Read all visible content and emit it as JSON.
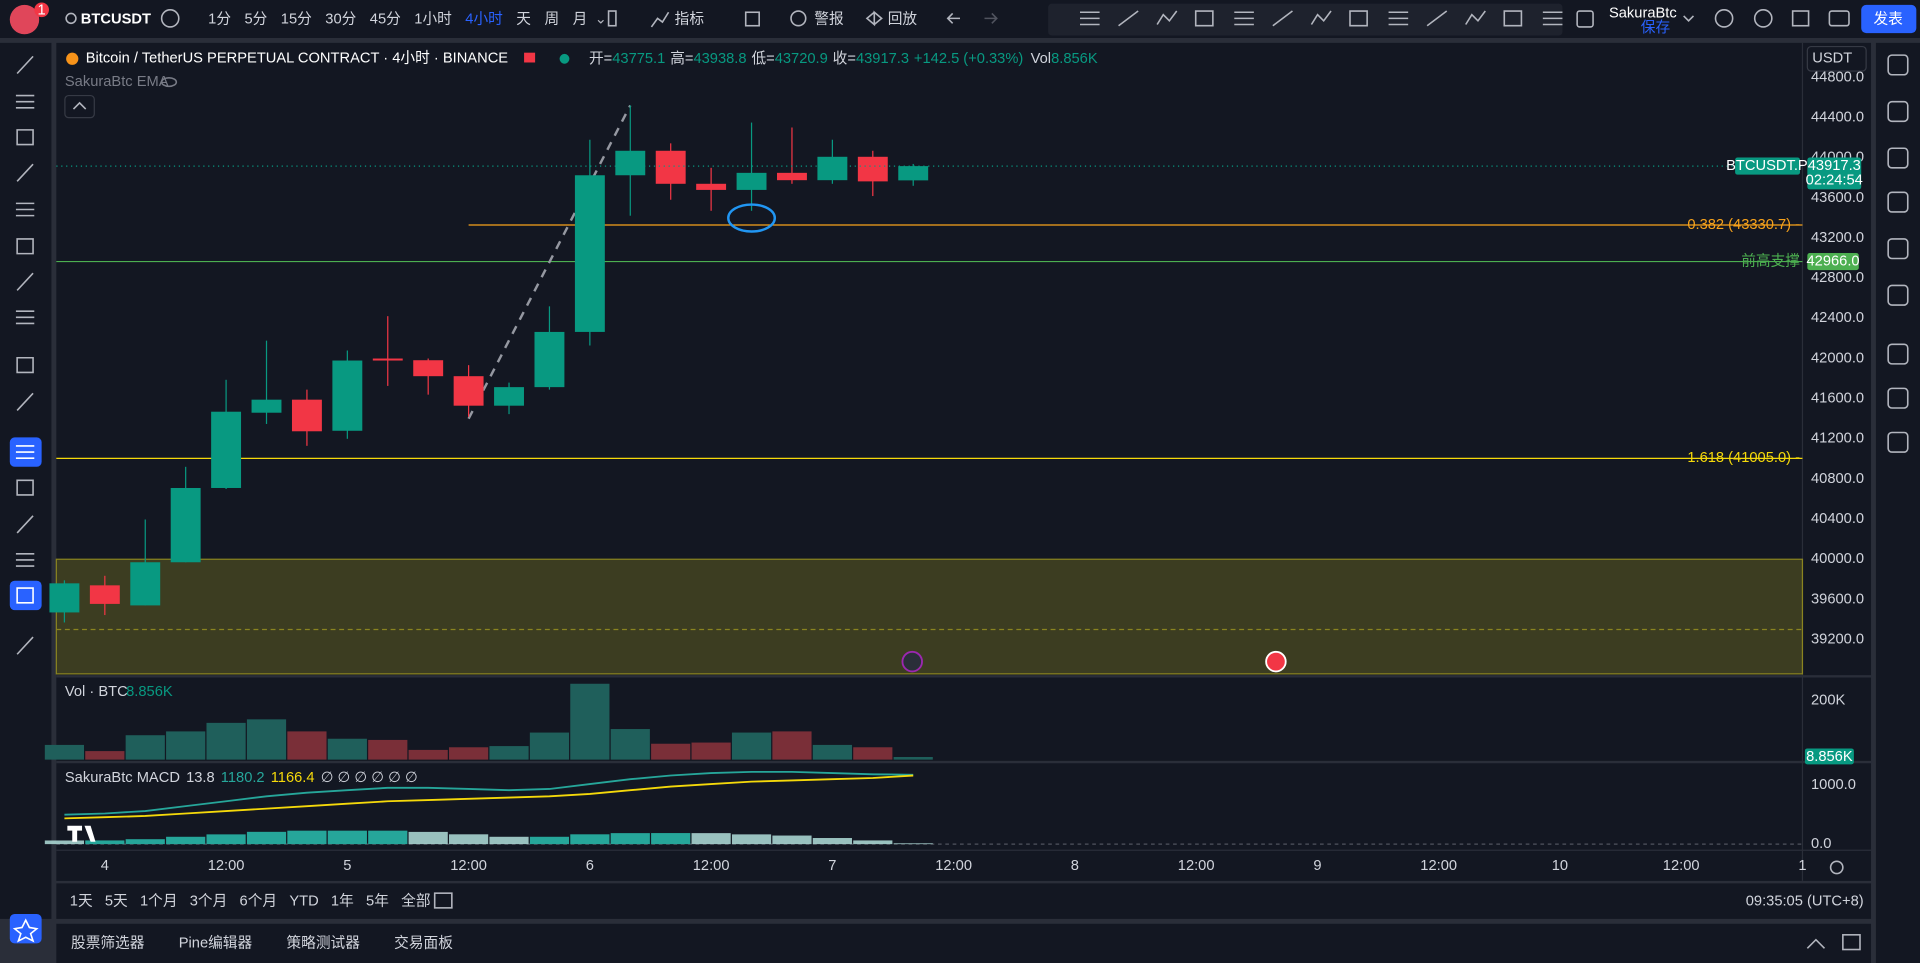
{
  "toolbar": {
    "symbol": "BTCUSDT",
    "notification_count": "1",
    "intervals": [
      "1分",
      "5分",
      "15分",
      "30分",
      "45分",
      "1小时",
      "4小时",
      "天",
      "周",
      "月"
    ],
    "active_interval": 6,
    "indicators": "指标",
    "alert": "警报",
    "replay": "回放",
    "layout_name": "SakuraBtc",
    "save": "保存",
    "publish": "发表"
  },
  "chart_header": {
    "title": "Bitcoin / TetherUS PERPETUAL CONTRACT · 4小时 · BINANCE",
    "legend": [
      {
        "label": "开=",
        "value": "43775.1"
      },
      {
        "label": "高=",
        "value": "43938.8"
      },
      {
        "label": "低=",
        "value": "43720.9"
      },
      {
        "label": "收=",
        "value": "43917.3"
      }
    ],
    "change": "+142.5 (+0.33%)",
    "vol_label": "Vol",
    "vol_value": "8.856K",
    "indicator": "SakuraBtc EMA",
    "currency": "USDT"
  },
  "chart_data": [
    {
      "type": "candlestick",
      "open": [
        39470,
        39740,
        39540,
        39970,
        40710,
        41460,
        41590,
        41280,
        42000,
        41983,
        41824,
        41530,
        41715,
        42265,
        43826,
        44070,
        43741,
        43680,
        43850,
        43777,
        44010,
        43775.1
      ],
      "high": [
        39790,
        39835,
        40396,
        40921,
        41788,
        42178,
        41690,
        42080,
        42422,
        42000,
        41934,
        41760,
        42520,
        44180,
        44522,
        44144,
        43900,
        44351,
        44302,
        44180,
        44070,
        43938.8
      ],
      "low": [
        39370,
        39444,
        39540,
        39970,
        40700,
        41348,
        41130,
        41200,
        41727,
        41640,
        41420,
        41446,
        41690,
        42130,
        43423,
        43582,
        43472,
        43472,
        43741,
        43741,
        43619,
        43720.9
      ],
      "close": [
        39760,
        39555,
        39970,
        40710,
        41470,
        41590,
        41275,
        41980,
        41980,
        41824,
        41530,
        41715,
        42265,
        43826,
        44070,
        43741,
        43680,
        43850,
        43777,
        44010,
        43765,
        43917.3
      ],
      "up_color": "#089981",
      "down_color": "#f23645",
      "xlim": [
        -0.2,
        43
      ],
      "xticks": [
        {
          "value": 1,
          "label": "4"
        },
        {
          "value": 4,
          "label": "12:00"
        },
        {
          "value": 7,
          "label": "5"
        },
        {
          "value": 10,
          "label": "12:00"
        },
        {
          "value": 13,
          "label": "6"
        },
        {
          "value": 16,
          "label": "12:00"
        },
        {
          "value": 19,
          "label": "7"
        },
        {
          "value": 22,
          "label": "12:00"
        },
        {
          "value": 25,
          "label": "8"
        },
        {
          "value": 28,
          "label": "12:00"
        },
        {
          "value": 31,
          "label": "9"
        },
        {
          "value": 34,
          "label": "12:00"
        },
        {
          "value": 37,
          "label": "10"
        },
        {
          "value": 40,
          "label": "12:00"
        },
        {
          "value": 43,
          "label": "1"
        }
      ],
      "ylim": [
        38858,
        45084
      ],
      "yticks": [
        {
          "value": 39200,
          "label": "39200.0"
        },
        {
          "value": 39600,
          "label": "39600.0"
        },
        {
          "value": 40000,
          "label": "40000.0"
        },
        {
          "value": 40400,
          "label": "40400.0"
        },
        {
          "value": 40800,
          "label": "40800.0"
        },
        {
          "value": 41200,
          "label": "41200.0"
        },
        {
          "value": 41600,
          "label": "41600.0"
        },
        {
          "value": 42000,
          "label": "42000.0"
        },
        {
          "value": 42400,
          "label": "42400.0"
        },
        {
          "value": 42800,
          "label": "42800.0"
        },
        {
          "value": 43200,
          "label": "43200.0"
        },
        {
          "value": 43600,
          "label": "43600.0"
        },
        {
          "value": 44000,
          "label": "44000.0"
        },
        {
          "value": 44400,
          "label": "44400.0"
        },
        {
          "value": 44800,
          "label": "44800.0"
        }
      ],
      "grid": false,
      "last_price": {
        "symbol": "BTCUSDT.P",
        "value": 43917.3,
        "countdown": "02:24:54"
      },
      "hlines": [
        {
          "value": 43330.7,
          "label": "0.382 (43330.7) -",
          "color": "#f7a21b",
          "from": 10
        },
        {
          "value": 42966.0,
          "label": "前高支撑",
          "axis_label": "42966.0",
          "color": "#4caf50"
        },
        {
          "value": 41005.0,
          "label": "1.618 (41005.0) -",
          "color": "#f5d90a"
        }
      ],
      "zone": {
        "top": 40000,
        "bottom": 38858,
        "mid": 39300,
        "color": "#8a8420"
      },
      "trendline": {
        "x": [
          10,
          14
        ],
        "y": [
          41400,
          44522
        ]
      },
      "ellipse": {
        "x": 17,
        "y": 43400
      }
    },
    {
      "type": "bar",
      "title": "Vol · BTC",
      "value_label": "8.856K",
      "values": [
        50000,
        29000,
        83000,
        96000,
        125000,
        137000,
        96000,
        71000,
        67000,
        33000,
        42000,
        46000,
        92000,
        258000,
        104000,
        54000,
        58000,
        92000,
        96000,
        50000,
        42000,
        8856
      ],
      "up_color": "#1f5f5b",
      "down_color": "#7a2f38",
      "label_color": "#089981",
      "ylim": [
        0,
        266667
      ],
      "yticks": [
        {
          "value": 200000,
          "label": "200K"
        }
      ]
    },
    {
      "type": "macd",
      "title": "SakuraBtc MACD",
      "legend_values": [
        13.8,
        1180.2,
        1166.4
      ],
      "na_labels": "∅ ∅ ∅ ∅ ∅ ∅",
      "histogram": [
        62,
        63,
        84,
        125,
        166,
        209,
        229,
        229,
        229,
        208,
        167,
        125,
        125,
        167,
        187,
        188,
        187,
        166,
        146,
        104,
        63,
        13.8
      ],
      "macd": [
        500,
        521,
        563,
        646,
        729,
        813,
        875,
        917,
        958,
        958,
        938,
        917,
        938,
        1021,
        1104,
        1167,
        1208,
        1229,
        1229,
        1208,
        1188,
        1180.2
      ],
      "signal": [
        438,
        458,
        479,
        521,
        563,
        604,
        646,
        688,
        729,
        750,
        771,
        792,
        813,
        854,
        917,
        979,
        1021,
        1063,
        1083,
        1104,
        1125,
        1166.4
      ],
      "macd_color": "#26a69a",
      "signal_color": "#f5d90a",
      "hist_up_color": "#26a69a",
      "hist_down_color": "#b2dfdb",
      "ylim": [
        -63,
        1354
      ],
      "yticks": [
        {
          "value": 1000,
          "label": "1000.0"
        },
        {
          "value": 0,
          "label": "0.0"
        }
      ]
    }
  ],
  "range_bar": {
    "ranges": [
      "1天",
      "5天",
      "1个月",
      "3个月",
      "6个月",
      "YTD",
      "1年",
      "5年",
      "全部"
    ],
    "time": "09:35:05 (UTC+8)"
  },
  "bottom_panel": {
    "tabs": [
      "股票筛选器",
      "Pine编辑器",
      "策略测试器",
      "交易面板"
    ]
  }
}
